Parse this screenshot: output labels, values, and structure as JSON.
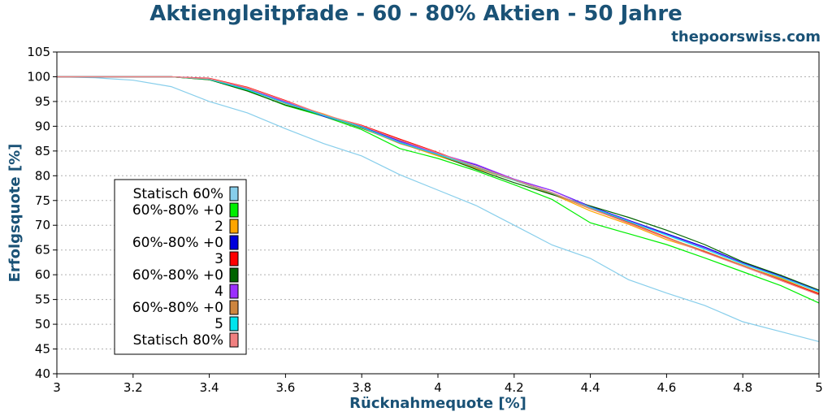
{
  "brand": "thepoorswiss.com",
  "chart_data": {
    "type": "line",
    "title": "Aktiengleitpfade - 60 - 80% Aktien - 50 Jahre",
    "xlabel": "Rücknahmequote [%]",
    "ylabel": "Erfolgsquote [%]",
    "xlim": [
      3,
      5
    ],
    "ylim": [
      40,
      105
    ],
    "xticks": [
      "3",
      "3.2",
      "3.4",
      "3.6",
      "3.8",
      "4",
      "4.2",
      "4.4",
      "4.6",
      "4.8",
      "5"
    ],
    "yticks": [
      "40",
      "45",
      "50",
      "55",
      "60",
      "65",
      "70",
      "75",
      "80",
      "85",
      "90",
      "95",
      "100",
      "105"
    ],
    "grid": "horizontal",
    "legend_position": "lower-left",
    "x": [
      3.0,
      3.1,
      3.2,
      3.3,
      3.4,
      3.5,
      3.6,
      3.7,
      3.8,
      3.9,
      4.0,
      4.1,
      4.2,
      4.3,
      4.4,
      4.5,
      4.6,
      4.7,
      4.8,
      4.9,
      5.0
    ],
    "series": [
      {
        "name": "Statisch 60%",
        "color": "#87ceeb",
        "values": [
          100,
          99.8,
          99.3,
          98,
          95,
          92.7,
          89.5,
          86.5,
          84,
          80.2,
          77.1,
          74,
          70,
          66,
          63.3,
          59,
          56.3,
          53.8,
          50.5,
          48.5,
          46.5
        ]
      },
      {
        "name": "60%-80% +0",
        "color": "#00ee00",
        "values": [
          100,
          100,
          100,
          100,
          99.4,
          97.2,
          94.2,
          92,
          89.3,
          85.5,
          83.5,
          81,
          78.2,
          75.2,
          70.5,
          68.3,
          66.1,
          63.4,
          60.6,
          57.8,
          54.3
        ]
      },
      {
        "name": "2",
        "color": "#ffa500",
        "values": [
          100,
          100,
          100,
          100,
          99.5,
          97.6,
          94.8,
          92.5,
          89.8,
          86.6,
          84,
          81.5,
          79.1,
          76.3,
          72.9,
          70.2,
          67.1,
          64.7,
          61.8,
          59.3,
          56.2
        ]
      },
      {
        "name": "60%-80% +0",
        "color": "#0000dd",
        "values": [
          100,
          100,
          100,
          100,
          99.6,
          97.5,
          94.9,
          92,
          89.9,
          87,
          84.5,
          82.2,
          79.3,
          77,
          73.8,
          71,
          68.3,
          65.6,
          62.4,
          59.8,
          56.8
        ]
      },
      {
        "name": "3",
        "color": "#ff0000",
        "values": [
          100,
          100,
          100,
          100,
          99.7,
          97.9,
          95.2,
          92.3,
          90.2,
          87.4,
          84.7,
          81.8,
          79.2,
          76.5,
          73.5,
          70.6,
          67.6,
          64.6,
          61.9,
          59,
          56.1
        ]
      },
      {
        "name": "60%-80% +0",
        "color": "#006400",
        "values": [
          100,
          100,
          100,
          100,
          99.4,
          97.1,
          94.3,
          92.2,
          89.6,
          86.7,
          84.2,
          81.3,
          78.6,
          76.2,
          73.9,
          71.6,
          69,
          66.1,
          62.6,
          59.9,
          56.9
        ]
      },
      {
        "name": "4",
        "color": "#9b30ff",
        "values": [
          100,
          100,
          100,
          100,
          99.6,
          97.5,
          94.9,
          92.1,
          89.8,
          86.9,
          84.5,
          82.3,
          79.3,
          77,
          73.7,
          70.9,
          68.1,
          65.4,
          62.3,
          59.6,
          56.7
        ]
      },
      {
        "name": "60%-80% +0",
        "color": "#cd853f",
        "values": [
          100,
          100,
          100,
          100,
          99.5,
          97.4,
          94.6,
          92.2,
          89.7,
          86.5,
          84.2,
          81.6,
          79.1,
          76.4,
          73.3,
          70.5,
          67.5,
          64.8,
          61.9,
          59.1,
          56.3
        ]
      },
      {
        "name": "5",
        "color": "#00e5ee",
        "values": [
          100,
          100,
          100,
          100,
          99.5,
          97.4,
          94.7,
          92.2,
          89.8,
          86.7,
          84.3,
          81.8,
          79.1,
          76.5,
          73.6,
          70.8,
          68,
          65.2,
          62.2,
          59.5,
          56.6
        ]
      },
      {
        "name": "Statisch 80%",
        "color": "#f08080",
        "values": [
          100,
          100,
          100,
          100,
          99.6,
          97.8,
          95.1,
          92.4,
          90.1,
          87.2,
          84.6,
          81.9,
          79.2,
          76.6,
          73.4,
          70.4,
          67.4,
          64.5,
          61.7,
          58.8,
          55.9
        ]
      }
    ]
  }
}
